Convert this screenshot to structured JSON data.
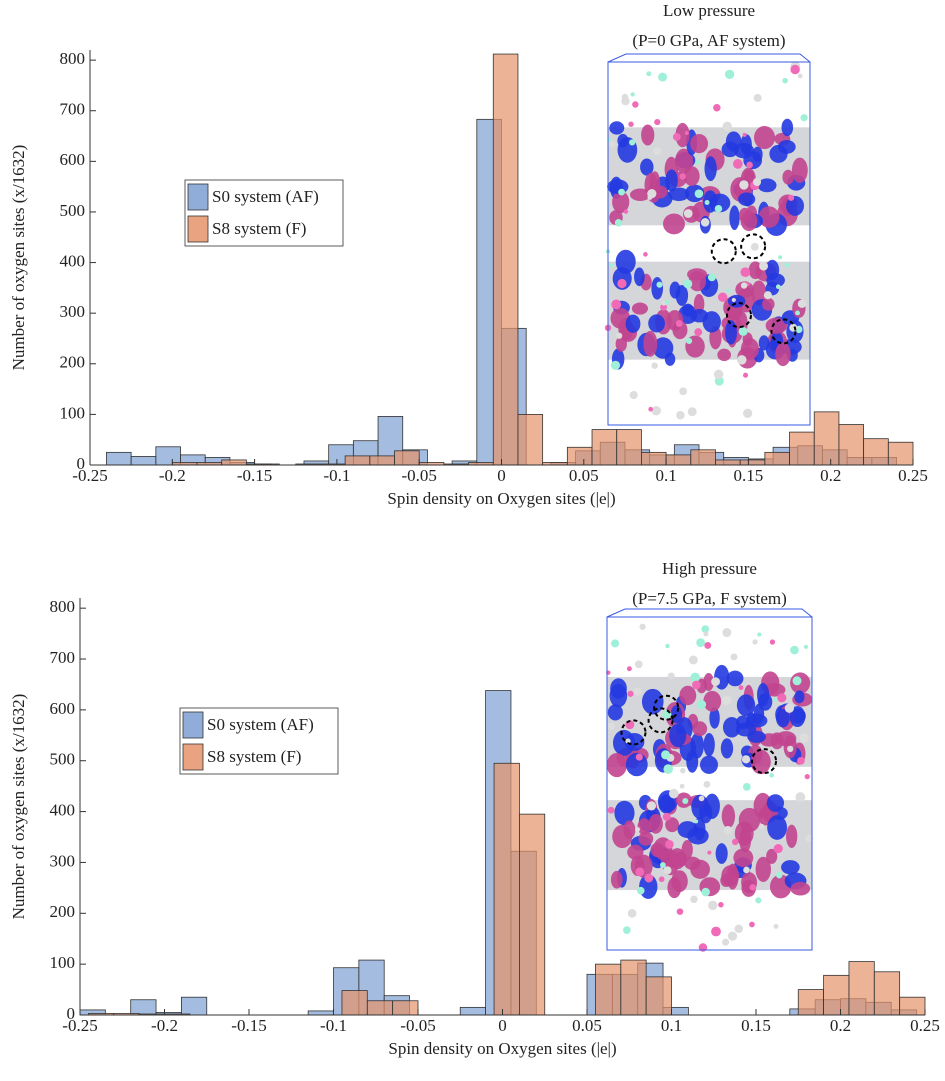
{
  "chart_data": [
    {
      "type": "histogram",
      "annotations": [
        "Low pressure",
        "(P=0 GPa, AF system)"
      ],
      "xlabel": "Spin density on Oxygen sites (|e|)",
      "ylabel": "Number of oxygen sites (x/1632)",
      "xlim": [
        -0.25,
        0.25
      ],
      "ylim": [
        0,
        820
      ],
      "xticks": [
        -0.25,
        -0.2,
        -0.15,
        -0.1,
        -0.05,
        0,
        0.05,
        0.1,
        0.15,
        0.2,
        0.25
      ],
      "yticks": [
        0,
        100,
        200,
        300,
        400,
        500,
        600,
        700,
        800
      ],
      "legend": "center left",
      "series": [
        {
          "name": "S0 system (AF)",
          "color": "#7d9fd2",
          "bins": [
            -0.24,
            -0.225,
            -0.21,
            -0.195,
            -0.18,
            -0.165,
            -0.15,
            -0.135,
            -0.12,
            -0.105,
            -0.09,
            -0.075,
            -0.06,
            -0.045,
            -0.03,
            -0.015,
            0,
            0.015,
            0.03,
            0.045,
            0.06,
            0.075,
            0.09,
            0.105,
            0.12,
            0.135,
            0.15,
            0.165,
            0.18,
            0.195,
            0.21,
            0.225,
            0.24
          ],
          "values": [
            25,
            17,
            36,
            20,
            15,
            5,
            2,
            0,
            8,
            40,
            48,
            96,
            30,
            0,
            8,
            683,
            270,
            0,
            5,
            28,
            45,
            30,
            20,
            40,
            25,
            15,
            12,
            35,
            38,
            30,
            15,
            15
          ]
        },
        {
          "name": "S8 system (F)",
          "color": "#e5936a",
          "bins": [
            -0.2,
            -0.185,
            -0.17,
            -0.155,
            -0.14,
            -0.125,
            -0.11,
            -0.095,
            -0.08,
            -0.065,
            -0.05,
            -0.035,
            -0.02,
            -0.005,
            0.01,
            0.025,
            0.04,
            0.055,
            0.07,
            0.085,
            0.1,
            0.115,
            0.13,
            0.145,
            0.16,
            0.175,
            0.19,
            0.205,
            0.22,
            0.235,
            0.25
          ],
          "values": [
            5,
            5,
            10,
            2,
            0,
            2,
            2,
            18,
            18,
            28,
            5,
            2,
            5,
            812,
            100,
            5,
            35,
            70,
            70,
            25,
            20,
            30,
            10,
            10,
            25,
            65,
            105,
            80,
            52,
            45
          ]
        }
      ]
    },
    {
      "type": "histogram",
      "annotations": [
        "High pressure",
        "(P=7.5 GPa, F system)"
      ],
      "xlabel": "Spin density on Oxygen sites (|e|)",
      "ylabel": "Number of oxygen sites (x/1632)",
      "xlim": [
        -0.25,
        0.25
      ],
      "ylim": [
        0,
        820
      ],
      "xticks": [
        -0.25,
        -0.2,
        -0.15,
        -0.1,
        -0.05,
        0,
        0.05,
        0.1,
        0.15,
        0.2,
        0.25
      ],
      "yticks": [
        0,
        100,
        200,
        300,
        400,
        500,
        600,
        700,
        800
      ],
      "legend": "center left",
      "series": [
        {
          "name": "S0 system (AF)",
          "color": "#7d9fd2",
          "bins": [
            -0.25,
            -0.235,
            -0.22,
            -0.205,
            -0.19,
            -0.175,
            -0.16,
            -0.145,
            -0.13,
            -0.115,
            -0.1,
            -0.085,
            -0.07,
            -0.055,
            -0.04,
            -0.025,
            -0.01,
            0.005,
            0.02,
            0.035,
            0.05,
            0.065,
            0.08,
            0.095,
            0.11,
            0.125,
            0.14,
            0.155,
            0.17,
            0.185,
            0.2,
            0.215,
            0.23,
            0.245
          ],
          "values": [
            10,
            0,
            30,
            5,
            35,
            0,
            0,
            0,
            0,
            8,
            93,
            108,
            38,
            0,
            0,
            15,
            638,
            322,
            0,
            0,
            80,
            80,
            102,
            15,
            0,
            0,
            0,
            0,
            12,
            30,
            32,
            25,
            10
          ]
        },
        {
          "name": "S8 system (F)",
          "color": "#e5936a",
          "bins": [
            -0.245,
            -0.23,
            -0.215,
            -0.2,
            -0.185,
            -0.17,
            -0.155,
            -0.14,
            -0.125,
            -0.11,
            -0.095,
            -0.08,
            -0.065,
            -0.05,
            -0.035,
            -0.02,
            -0.005,
            0.01,
            0.025,
            0.04,
            0.055,
            0.07,
            0.085,
            0.1,
            0.115,
            0.13,
            0.145,
            0.16,
            0.175,
            0.19,
            0.205,
            0.22,
            0.235,
            0.25
          ],
          "values": [
            3,
            3,
            2,
            2,
            0,
            0,
            0,
            0,
            0,
            0,
            48,
            28,
            28,
            0,
            0,
            0,
            495,
            395,
            0,
            0,
            100,
            108,
            75,
            0,
            0,
            0,
            0,
            0,
            50,
            78,
            105,
            85,
            35
          ]
        }
      ]
    }
  ]
}
